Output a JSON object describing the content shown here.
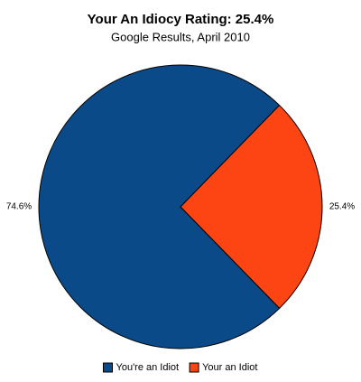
{
  "chart_data": {
    "type": "pie",
    "title": "Your An Idiocy Rating: 25.4%",
    "subtitle": "Google Results, April 2010",
    "categories": [
      "You're an Idiot",
      "Your an Idiot"
    ],
    "values": [
      74.6,
      25.4
    ],
    "value_labels": [
      "74.6%",
      "25.4%"
    ],
    "colors": [
      "#0b4a88",
      "#fc4512"
    ],
    "legend": "bottom"
  }
}
